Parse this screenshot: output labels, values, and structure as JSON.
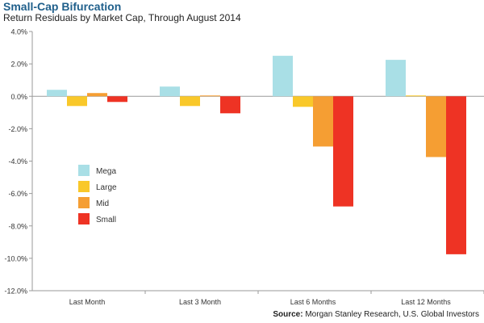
{
  "header": {
    "title": "Small-Cap Bifurcation",
    "subtitle": "Return Residuals by Market Cap, Through August 2014"
  },
  "footer": {
    "source_label": "Source:",
    "source_text": "Morgan Stanley Research, U.S. Global Investors"
  },
  "colors": {
    "Mega": "#a9dfe6",
    "Large": "#f9c82a",
    "Mid": "#f59e33",
    "Small": "#ee3324",
    "title": "#1f5f8b"
  },
  "chart_data": {
    "type": "bar",
    "categories": [
      "Last Month",
      "Last 3 Month",
      "Last 6 Months",
      "Last 12 Months"
    ],
    "series": [
      {
        "name": "Mega",
        "values": [
          0.4,
          0.6,
          2.5,
          2.25
        ]
      },
      {
        "name": "Large",
        "values": [
          -0.6,
          -0.6,
          -0.65,
          0.05
        ]
      },
      {
        "name": "Mid",
        "values": [
          0.2,
          0.05,
          -3.1,
          -3.75
        ]
      },
      {
        "name": "Small",
        "values": [
          -0.35,
          -1.05,
          -6.8,
          -9.75
        ]
      }
    ],
    "title": "Small-Cap Bifurcation",
    "subtitle": "Return Residuals by Market Cap, Through August 2014",
    "ylim": [
      -12,
      4
    ],
    "yticks": [
      "4.0%",
      "2.0%",
      "0.0%",
      "-2.0%",
      "-4.0%",
      "-6.0%",
      "-8.0%",
      "-10.0%",
      "-12.0%"
    ],
    "ytick_values": [
      4,
      2,
      0,
      -2,
      -4,
      -6,
      -8,
      -10,
      -12
    ],
    "unit": "%",
    "grid": false,
    "legend": "left, inside plot"
  }
}
